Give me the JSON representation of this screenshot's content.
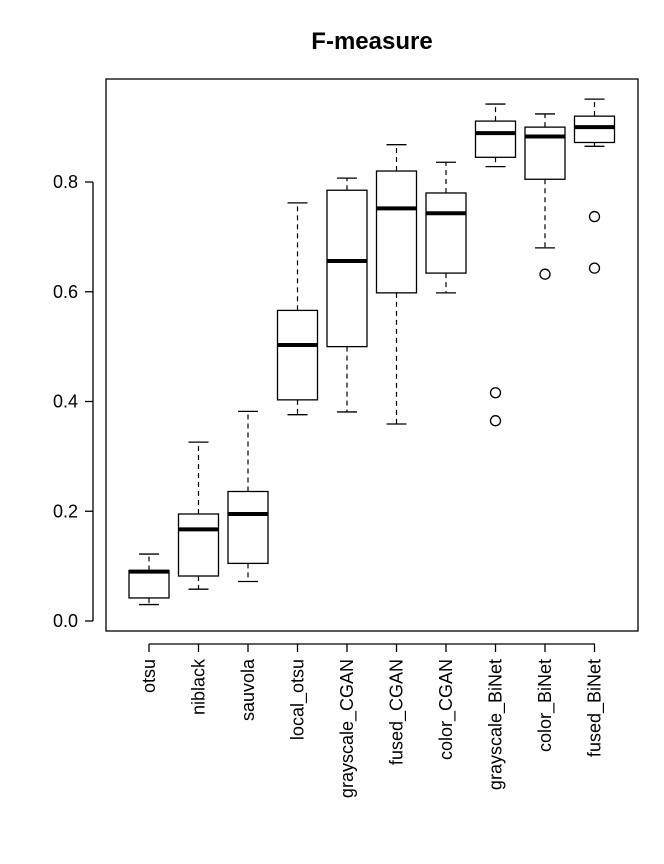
{
  "chart_data": {
    "type": "boxplot",
    "title": "F-measure",
    "xlabel": "",
    "ylabel": "",
    "ylim": [
      0,
      1
    ],
    "yticks": [
      0.0,
      0.2,
      0.4,
      0.6,
      0.8
    ],
    "ytick_labels": [
      "0.0",
      "0.2",
      "0.4",
      "0.6",
      "0.8"
    ],
    "grid": false,
    "colors": {
      "stroke": "#000000",
      "background": "#ffffff"
    },
    "boxes": [
      {
        "label": "otsu",
        "whisker_low": 0.03,
        "q1": 0.042,
        "median": 0.09,
        "q3": 0.092,
        "whisker_high": 0.122,
        "outliers": []
      },
      {
        "label": "niblack",
        "whisker_low": 0.058,
        "q1": 0.082,
        "median": 0.167,
        "q3": 0.195,
        "whisker_high": 0.326,
        "outliers": []
      },
      {
        "label": "sauvola",
        "whisker_low": 0.072,
        "q1": 0.105,
        "median": 0.195,
        "q3": 0.236,
        "whisker_high": 0.382,
        "outliers": []
      },
      {
        "label": "local_otsu",
        "whisker_low": 0.376,
        "q1": 0.403,
        "median": 0.503,
        "q3": 0.566,
        "whisker_high": 0.762,
        "outliers": []
      },
      {
        "label": "grayscale_CGAN",
        "whisker_low": 0.381,
        "q1": 0.5,
        "median": 0.656,
        "q3": 0.785,
        "whisker_high": 0.807,
        "outliers": []
      },
      {
        "label": "fused_CGAN",
        "whisker_low": 0.359,
        "q1": 0.598,
        "median": 0.752,
        "q3": 0.82,
        "whisker_high": 0.868,
        "outliers": []
      },
      {
        "label": "color_CGAN",
        "whisker_low": 0.598,
        "q1": 0.634,
        "median": 0.743,
        "q3": 0.78,
        "whisker_high": 0.836,
        "outliers": []
      },
      {
        "label": "grayscale_BiNet",
        "whisker_low": 0.828,
        "q1": 0.845,
        "median": 0.889,
        "q3": 0.911,
        "whisker_high": 0.942,
        "outliers": [
          0.416,
          0.365
        ]
      },
      {
        "label": "color_BiNet",
        "whisker_low": 0.68,
        "q1": 0.805,
        "median": 0.883,
        "q3": 0.9,
        "whisker_high": 0.924,
        "outliers": [
          0.632
        ]
      },
      {
        "label": "fused_BiNet",
        "whisker_low": 0.865,
        "q1": 0.872,
        "median": 0.9,
        "q3": 0.92,
        "whisker_high": 0.951,
        "outliers": [
          0.737,
          0.643
        ]
      }
    ]
  }
}
